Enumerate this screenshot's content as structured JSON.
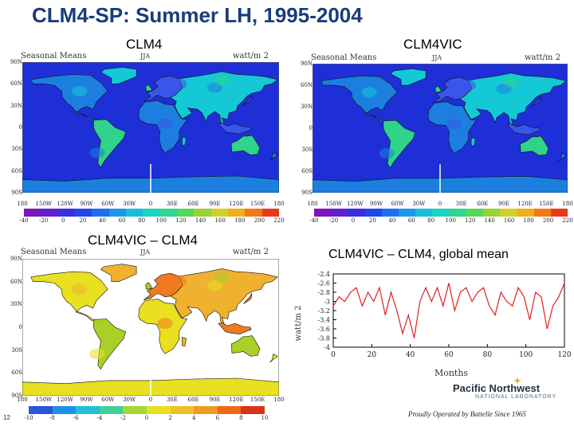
{
  "slide": {
    "title": "CLM4-SP: Summer LH, 1995-2004",
    "page_number": "12"
  },
  "maps": [
    {
      "title": "CLM4",
      "header_left": "Seasonal Means",
      "header_mid": "JJA",
      "header_right": "watt/m 2",
      "y_ticks": [
        "90N",
        "60N",
        "30N",
        "0",
        "30S",
        "60S",
        "90S"
      ],
      "x_ticks": [
        "180",
        "150W",
        "120W",
        "90W",
        "60W",
        "30W",
        "0",
        "30E",
        "60E",
        "90E",
        "120E",
        "150E",
        "180"
      ],
      "colorbar_ticks": [
        "-40",
        "-20",
        "0",
        "20",
        "40",
        "60",
        "80",
        "100",
        "120",
        "140",
        "160",
        "180",
        "200",
        "220"
      ],
      "ocean_color": "#1e2fd8",
      "land_colors": [
        "#1c7fe0",
        "#14c8d6",
        "#2fd38a",
        "#3a56e8"
      ]
    },
    {
      "title": "CLM4VIC",
      "header_left": "Seasonal Means",
      "header_mid": "JJA",
      "header_right": "watt/m 2",
      "y_ticks": [
        "90N",
        "60N",
        "30N",
        "0",
        "30S",
        "60S",
        "90S"
      ],
      "x_ticks": [
        "180",
        "150W",
        "120W",
        "90W",
        "60W",
        "30W",
        "0",
        "30E",
        "60E",
        "90E",
        "120E",
        "150E",
        "180"
      ],
      "colorbar_ticks": [
        "-40",
        "-20",
        "0",
        "20",
        "40",
        "60",
        "80",
        "100",
        "120",
        "140",
        "160",
        "180",
        "200",
        "220"
      ],
      "ocean_color": "#1e2fd8",
      "land_colors": [
        "#1c7fe0",
        "#14c8d6",
        "#2fd38a",
        "#3a56e8"
      ]
    },
    {
      "title": "CLM4VIC – CLM4",
      "header_left": "Seasonal Means",
      "header_mid": "JJA",
      "header_right": "watt/m 2",
      "y_ticks": [
        "90N",
        "60N",
        "30N",
        "0",
        "30S",
        "60S",
        "90S"
      ],
      "x_ticks": [
        "180",
        "150W",
        "120W",
        "90W",
        "60W",
        "30W",
        "0",
        "30E",
        "60E",
        "90E",
        "120E",
        "150E",
        "180"
      ],
      "colorbar_ticks": [
        "-10",
        "-8",
        "-6",
        "-4",
        "-2",
        "0",
        "2",
        "4",
        "6",
        "8",
        "10"
      ],
      "ocean_color": "#ffffff",
      "land_colors": [
        "#e8e020",
        "#f0b030",
        "#a8d028",
        "#f07a20"
      ]
    }
  ],
  "colorbar_main": [
    "#7a16b8",
    "#6020d0",
    "#3a2ce0",
    "#2046ee",
    "#1e70f0",
    "#1c98e8",
    "#16bede",
    "#1ad6c0",
    "#2ed690",
    "#56d85a",
    "#9ad238",
    "#d0d028",
    "#eeb020",
    "#f07a18",
    "#e83a18"
  ],
  "colorbar_diff": [
    "#2a56d8",
    "#1e90e8",
    "#20c0d8",
    "#40d098",
    "#a8d838",
    "#e8e020",
    "#f0c028",
    "#f09a20",
    "#ee6a18",
    "#d83418"
  ],
  "line_chart": {
    "title": "CLM4VIC – CLM4, global mean",
    "xlabel": "Months",
    "ylabel": "watt/m 2",
    "x_ticks": [
      "0",
      "20",
      "40",
      "60",
      "80",
      "100",
      "120"
    ],
    "y_ticks": [
      "-2.4",
      "-2.6",
      "-2.8",
      "-3",
      "-3.2",
      "-3.4",
      "-3.6",
      "-3.8",
      "-4"
    ],
    "line_color": "#e02020",
    "x_range": [
      0,
      120
    ],
    "y_range": [
      -4,
      -2.4
    ]
  },
  "chart_data": {
    "type": "line",
    "title": "CLM4VIC – CLM4, global mean",
    "xlabel": "Months",
    "ylabel": "watt/m 2",
    "xlim": [
      0,
      120
    ],
    "ylim": [
      -4,
      -2.4
    ],
    "x": [
      0,
      3,
      6,
      9,
      12,
      15,
      18,
      21,
      24,
      27,
      30,
      33,
      36,
      39,
      42,
      45,
      48,
      51,
      54,
      57,
      60,
      63,
      66,
      69,
      72,
      75,
      78,
      81,
      84,
      87,
      90,
      93,
      96,
      99,
      102,
      105,
      108,
      111,
      114,
      117,
      120
    ],
    "series": [
      {
        "values": [
          -3.1,
          -2.9,
          -3.0,
          -2.8,
          -2.7,
          -3.1,
          -2.8,
          -3.0,
          -2.7,
          -3.3,
          -2.8,
          -3.2,
          -3.7,
          -3.3,
          -3.8,
          -3.0,
          -2.7,
          -3.0,
          -2.7,
          -3.1,
          -2.6,
          -3.2,
          -2.8,
          -2.7,
          -3.0,
          -2.8,
          -2.7,
          -3.1,
          -3.3,
          -2.8,
          -3.0,
          -3.1,
          -2.7,
          -2.9,
          -3.4,
          -2.8,
          -2.9,
          -3.6,
          -3.1,
          -2.9,
          -2.6
        ]
      }
    ],
    "grid": false
  },
  "pnnl": {
    "name": "Pacific Northwest",
    "sub": "NATIONAL LABORATORY",
    "tagline": "Proudly Operated by Battelle Since 1965"
  }
}
